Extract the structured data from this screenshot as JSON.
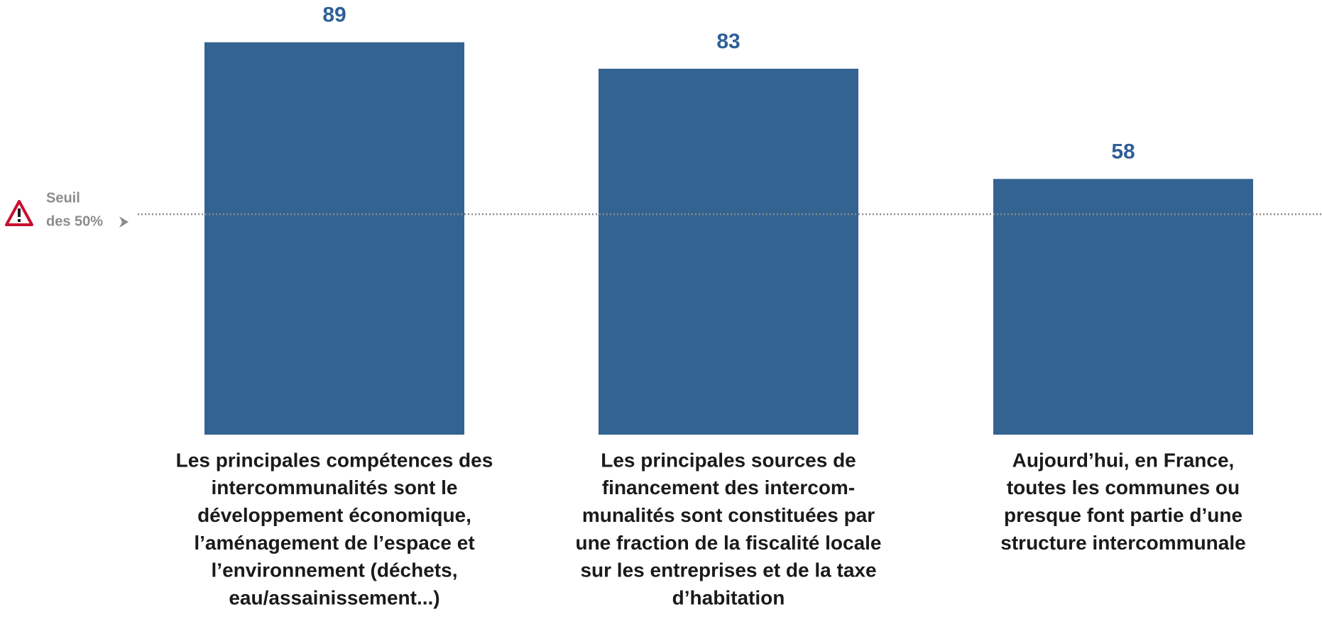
{
  "chart_data": {
    "type": "bar",
    "categories": [
      [
        "Les principales compétences des",
        "intercommunalités sont le",
        "développement économique,",
        "l’aménagement de l’espace et",
        "l’environnement (déchets,",
        "eau/assainissement...)"
      ],
      [
        "Les principales sources de",
        "financement des intercom-",
        "munalités sont constituées par",
        "une fraction de la fiscalité locale",
        "sur les entreprises et de la taxe",
        "d’habitation"
      ],
      [
        "Aujourd’hui, en France,",
        "toutes les communes ou",
        "presque font partie d’une",
        "structure intercommunale"
      ]
    ],
    "values": [
      89,
      83,
      58
    ],
    "color": "#336391",
    "threshold": {
      "value": 50,
      "label": [
        "Seuil",
        "des 50%"
      ]
    }
  }
}
